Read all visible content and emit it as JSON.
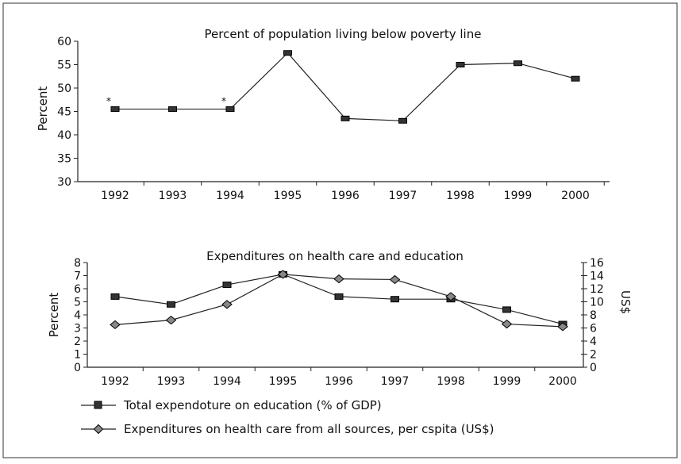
{
  "chart_data": [
    {
      "type": "line",
      "title": "Percent of population living below poverty line",
      "ylabel": "Percent",
      "xlabel": "",
      "categories": [
        "1992",
        "1993",
        "1994",
        "1995",
        "1996",
        "1997",
        "1998",
        "1999",
        "2000"
      ],
      "ylim": [
        30,
        60
      ],
      "yticks": [
        30,
        35,
        40,
        45,
        50,
        55,
        60
      ],
      "series": [
        {
          "values": [
            45.5,
            45.5,
            45.5,
            57.5,
            43.5,
            43.0,
            55.0,
            55.3,
            52.0
          ],
          "marker": "square",
          "color": "#222222"
        }
      ],
      "annotations": [
        {
          "text": "*",
          "category": "1992"
        },
        {
          "text": "*",
          "category": "1994"
        }
      ],
      "grid": false
    },
    {
      "type": "line",
      "title": "Expenditures on health care and education",
      "ylabel": "Percent",
      "y2label": "US$",
      "xlabel": "",
      "categories": [
        "1992",
        "1993",
        "1994",
        "1995",
        "1996",
        "1997",
        "1998",
        "1999",
        "2000"
      ],
      "ylim": [
        0,
        8
      ],
      "yticks": [
        0,
        1,
        2,
        3,
        4,
        5,
        6,
        7,
        8
      ],
      "y2lim": [
        0,
        16
      ],
      "y2ticks": [
        0,
        2,
        4,
        6,
        8,
        10,
        12,
        14,
        16
      ],
      "series": [
        {
          "name": "Total expendoture on education (% of GDP)",
          "axis": "left",
          "marker": "square",
          "values": [
            5.4,
            4.8,
            6.3,
            7.1,
            5.4,
            5.2,
            5.2,
            4.4,
            3.3
          ]
        },
        {
          "name": "Expenditures on health care from all sources, per cspita (US$)",
          "axis": "right",
          "marker": "diamond",
          "values": [
            6.5,
            7.2,
            9.6,
            14.2,
            13.5,
            13.4,
            10.8,
            6.6,
            6.2
          ]
        }
      ],
      "legend_position": "bottom-left",
      "grid": false
    }
  ]
}
